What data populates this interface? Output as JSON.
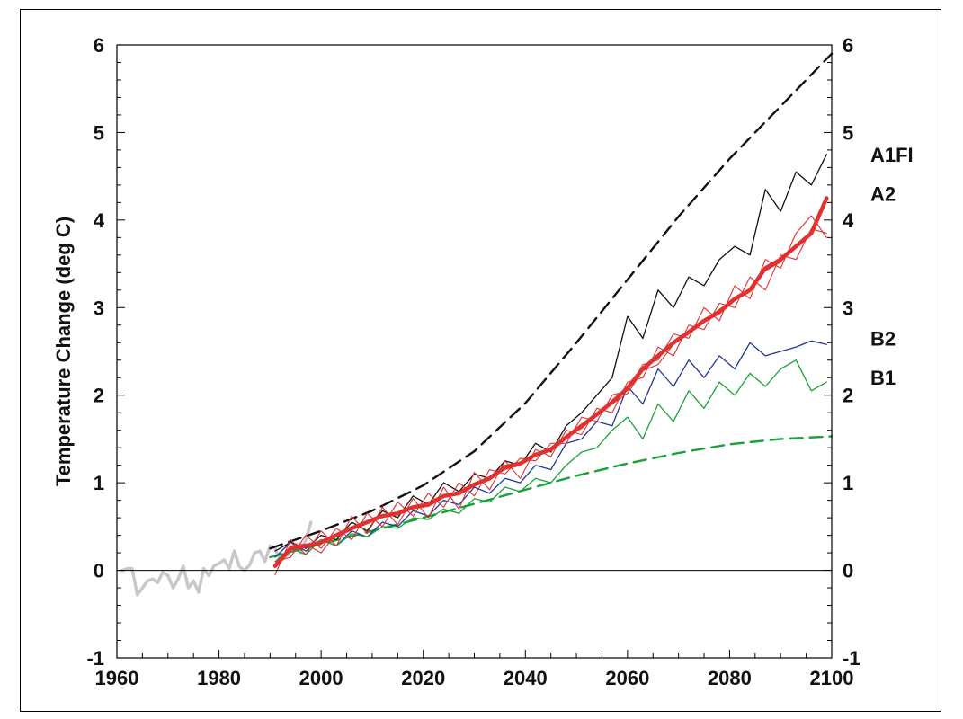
{
  "chart_data": {
    "type": "line",
    "title": "",
    "xlabel": "",
    "ylabel": "Temperature Change (deg C)",
    "xlim": [
      1960,
      2100
    ],
    "ylim": [
      -1,
      6
    ],
    "x_ticks": [
      1960,
      1980,
      2000,
      2020,
      2040,
      2060,
      2080,
      2100
    ],
    "y_ticks": [
      -1,
      0,
      1,
      2,
      3,
      4,
      5,
      6
    ],
    "y_ticks_right": [
      -1,
      0,
      1,
      2,
      3,
      4,
      5,
      6
    ],
    "grid": false,
    "zero_line": true,
    "scenario_labels": [
      {
        "text": "A1FI",
        "y": 4.75
      },
      {
        "text": "A2",
        "y": 4.3
      },
      {
        "text": "B2",
        "y": 2.65
      },
      {
        "text": "B1",
        "y": 2.2
      }
    ],
    "series": [
      {
        "color": "#c8c8cc",
        "width": 3.5,
        "style": "solid",
        "x": [
          1961,
          1962,
          1963,
          1964,
          1965,
          1966,
          1967,
          1968,
          1969,
          1970,
          1971,
          1972,
          1973,
          1974,
          1975,
          1976,
          1977,
          1978,
          1979,
          1980,
          1981,
          1982,
          1983,
          1984,
          1985,
          1986,
          1987,
          1988,
          1989,
          1990,
          1991,
          1992,
          1993,
          1994,
          1995,
          1996,
          1997,
          1998
        ],
        "y": [
          0.0,
          0.02,
          0.02,
          -0.28,
          -0.2,
          -0.12,
          -0.1,
          -0.14,
          -0.02,
          -0.06,
          -0.2,
          -0.1,
          0.05,
          -0.2,
          -0.12,
          -0.25,
          0.02,
          -0.06,
          0.05,
          0.08,
          0.12,
          0.02,
          0.22,
          0.04,
          0.0,
          0.06,
          0.2,
          0.22,
          0.1,
          0.28,
          0.25,
          0.1,
          0.15,
          0.22,
          0.3,
          0.2,
          0.35,
          0.55
        ]
      },
      {
        "color": "#111111",
        "width": 2.4,
        "style": "dashed",
        "x": [
          1990,
          2000,
          2010,
          2020,
          2030,
          2040,
          2050,
          2060,
          2070,
          2080,
          2090,
          2100
        ],
        "y": [
          0.25,
          0.45,
          0.68,
          0.97,
          1.36,
          1.91,
          2.6,
          3.32,
          4.04,
          4.7,
          5.3,
          5.9
        ]
      },
      {
        "color": "#1aa23a",
        "width": 2.4,
        "style": "dashed",
        "x": [
          1990,
          2000,
          2010,
          2020,
          2030,
          2040,
          2050,
          2060,
          2070,
          2080,
          2090,
          2100
        ],
        "y": [
          0.15,
          0.3,
          0.45,
          0.6,
          0.76,
          0.92,
          1.08,
          1.22,
          1.34,
          1.44,
          1.5,
          1.53
        ]
      },
      {
        "color": "#111111",
        "width": 1.3,
        "style": "solid",
        "x": [
          1991,
          1994,
          1997,
          2000,
          2003,
          2006,
          2009,
          2012,
          2015,
          2018,
          2021,
          2024,
          2027,
          2030,
          2033,
          2036,
          2039,
          2042,
          2045,
          2048,
          2051,
          2054,
          2057,
          2060,
          2063,
          2066,
          2069,
          2072,
          2075,
          2078,
          2081,
          2084,
          2087,
          2090,
          2093,
          2096,
          2099
        ],
        "y": [
          0.22,
          0.32,
          0.25,
          0.4,
          0.35,
          0.55,
          0.45,
          0.68,
          0.6,
          0.85,
          0.75,
          1.0,
          0.9,
          1.1,
          1.05,
          1.25,
          1.2,
          1.45,
          1.35,
          1.65,
          1.8,
          2.0,
          2.2,
          2.9,
          2.65,
          3.2,
          3.0,
          3.35,
          3.25,
          3.55,
          3.7,
          3.6,
          4.35,
          4.1,
          4.55,
          4.4,
          4.75
        ]
      },
      {
        "color": "#22359a",
        "width": 1.3,
        "style": "solid",
        "x": [
          1991,
          1994,
          1997,
          2000,
          2003,
          2006,
          2009,
          2012,
          2015,
          2018,
          2021,
          2024,
          2027,
          2030,
          2033,
          2036,
          2039,
          2042,
          2045,
          2048,
          2051,
          2054,
          2057,
          2060,
          2063,
          2066,
          2069,
          2072,
          2075,
          2078,
          2081,
          2084,
          2087,
          2090,
          2093,
          2096,
          2099
        ],
        "y": [
          0.15,
          0.32,
          0.22,
          0.35,
          0.28,
          0.45,
          0.38,
          0.55,
          0.5,
          0.68,
          0.62,
          0.8,
          0.75,
          0.95,
          0.88,
          1.05,
          1.0,
          1.2,
          1.15,
          1.45,
          1.5,
          1.7,
          1.65,
          2.1,
          1.9,
          2.3,
          2.1,
          2.4,
          2.2,
          2.45,
          2.3,
          2.6,
          2.45,
          2.5,
          2.55,
          2.62,
          2.58
        ]
      },
      {
        "color": "#1aa23a",
        "width": 1.3,
        "style": "solid",
        "x": [
          1991,
          1994,
          1997,
          2000,
          2003,
          2006,
          2009,
          2012,
          2015,
          2018,
          2021,
          2024,
          2027,
          2030,
          2033,
          2036,
          2039,
          2042,
          2045,
          2048,
          2051,
          2054,
          2057,
          2060,
          2063,
          2066,
          2069,
          2072,
          2075,
          2078,
          2081,
          2084,
          2087,
          2090,
          2093,
          2096,
          2099
        ],
        "y": [
          0.1,
          0.25,
          0.18,
          0.35,
          0.28,
          0.42,
          0.38,
          0.5,
          0.48,
          0.6,
          0.58,
          0.7,
          0.65,
          0.82,
          0.78,
          0.95,
          0.9,
          1.05,
          1.0,
          1.2,
          1.35,
          1.4,
          1.6,
          1.75,
          1.5,
          1.9,
          1.7,
          2.05,
          1.85,
          2.15,
          2.0,
          2.25,
          2.1,
          2.3,
          2.4,
          2.05,
          2.15
        ]
      },
      {
        "color": "#e03030",
        "width": 1.1,
        "style": "solid",
        "x": [
          1991,
          1994,
          1997,
          2000,
          2003,
          2006,
          2009,
          2012,
          2015,
          2018,
          2021,
          2024,
          2027,
          2030,
          2033,
          2036,
          2039,
          2042,
          2045,
          2048,
          2051,
          2054,
          2057,
          2060,
          2063,
          2066,
          2069,
          2072,
          2075,
          2078,
          2081,
          2084,
          2087,
          2090,
          2093,
          2096,
          2099
        ],
        "y": [
          -0.05,
          0.35,
          0.18,
          0.45,
          0.28,
          0.62,
          0.42,
          0.72,
          0.52,
          0.82,
          0.6,
          0.95,
          0.7,
          1.12,
          0.92,
          1.25,
          1.05,
          1.38,
          1.3,
          1.6,
          1.55,
          1.85,
          1.8,
          2.15,
          2.2,
          2.55,
          2.45,
          2.8,
          2.75,
          3.05,
          3.0,
          3.35,
          3.2,
          3.6,
          3.55,
          3.9,
          3.85
        ]
      },
      {
        "color": "#e03030",
        "width": 1.1,
        "style": "solid",
        "x": [
          1991,
          1994,
          1997,
          2000,
          2003,
          2006,
          2009,
          2012,
          2015,
          2018,
          2021,
          2024,
          2027,
          2030,
          2033,
          2036,
          2039,
          2042,
          2045,
          2048,
          2051,
          2054,
          2057,
          2060,
          2063,
          2066,
          2069,
          2072,
          2075,
          2078,
          2081,
          2084,
          2087,
          2090,
          2093,
          2096,
          2099
        ],
        "y": [
          0.1,
          0.15,
          0.4,
          0.25,
          0.48,
          0.35,
          0.65,
          0.5,
          0.78,
          0.62,
          0.88,
          0.72,
          1.0,
          0.85,
          1.15,
          1.1,
          1.28,
          1.25,
          1.45,
          1.45,
          1.75,
          1.7,
          2.0,
          2.05,
          2.35,
          2.4,
          2.7,
          2.65,
          3.0,
          2.85,
          3.25,
          3.1,
          3.55,
          3.45,
          3.85,
          4.05,
          3.8
        ]
      },
      {
        "color": "#e03030",
        "width": 1.1,
        "style": "solid",
        "x": [
          1991,
          1994,
          1997,
          2000,
          2003,
          2006,
          2009,
          2012,
          2015,
          2018,
          2021,
          2024,
          2027,
          2030,
          2033,
          2036,
          2039,
          2042,
          2045,
          2048,
          2051,
          2054,
          2057,
          2060,
          2063,
          2066,
          2069,
          2072,
          2075,
          2078,
          2081,
          2084,
          2087,
          2090,
          2093,
          2096,
          2099
        ],
        "y": [
          0.05,
          0.28,
          0.3,
          0.2,
          0.42,
          0.5,
          0.55,
          0.62,
          0.65,
          0.7,
          0.78,
          0.85,
          0.9,
          0.98,
          1.05,
          1.15,
          1.2,
          1.32,
          1.38,
          1.52,
          1.62,
          1.78,
          1.9,
          2.02,
          2.28,
          2.35,
          2.58,
          2.7,
          2.85,
          2.98,
          3.1,
          3.22,
          3.42,
          3.52,
          3.72,
          3.85,
          4.25
        ]
      },
      {
        "color": "#e03030",
        "width": 4.5,
        "style": "solid",
        "x": [
          1991,
          1994,
          1997,
          2000,
          2003,
          2006,
          2009,
          2012,
          2015,
          2018,
          2021,
          2024,
          2027,
          2030,
          2033,
          2036,
          2039,
          2042,
          2045,
          2048,
          2051,
          2054,
          2057,
          2060,
          2063,
          2066,
          2069,
          2072,
          2075,
          2078,
          2081,
          2084,
          2087,
          2090,
          2093,
          2096,
          2099
        ],
        "y": [
          0.05,
          0.25,
          0.28,
          0.32,
          0.4,
          0.48,
          0.55,
          0.62,
          0.65,
          0.72,
          0.75,
          0.85,
          0.88,
          0.98,
          1.05,
          1.18,
          1.22,
          1.32,
          1.38,
          1.52,
          1.65,
          1.78,
          1.92,
          2.08,
          2.3,
          2.45,
          2.6,
          2.72,
          2.85,
          2.95,
          3.1,
          3.2,
          3.45,
          3.55,
          3.7,
          3.85,
          4.25
        ]
      }
    ]
  }
}
